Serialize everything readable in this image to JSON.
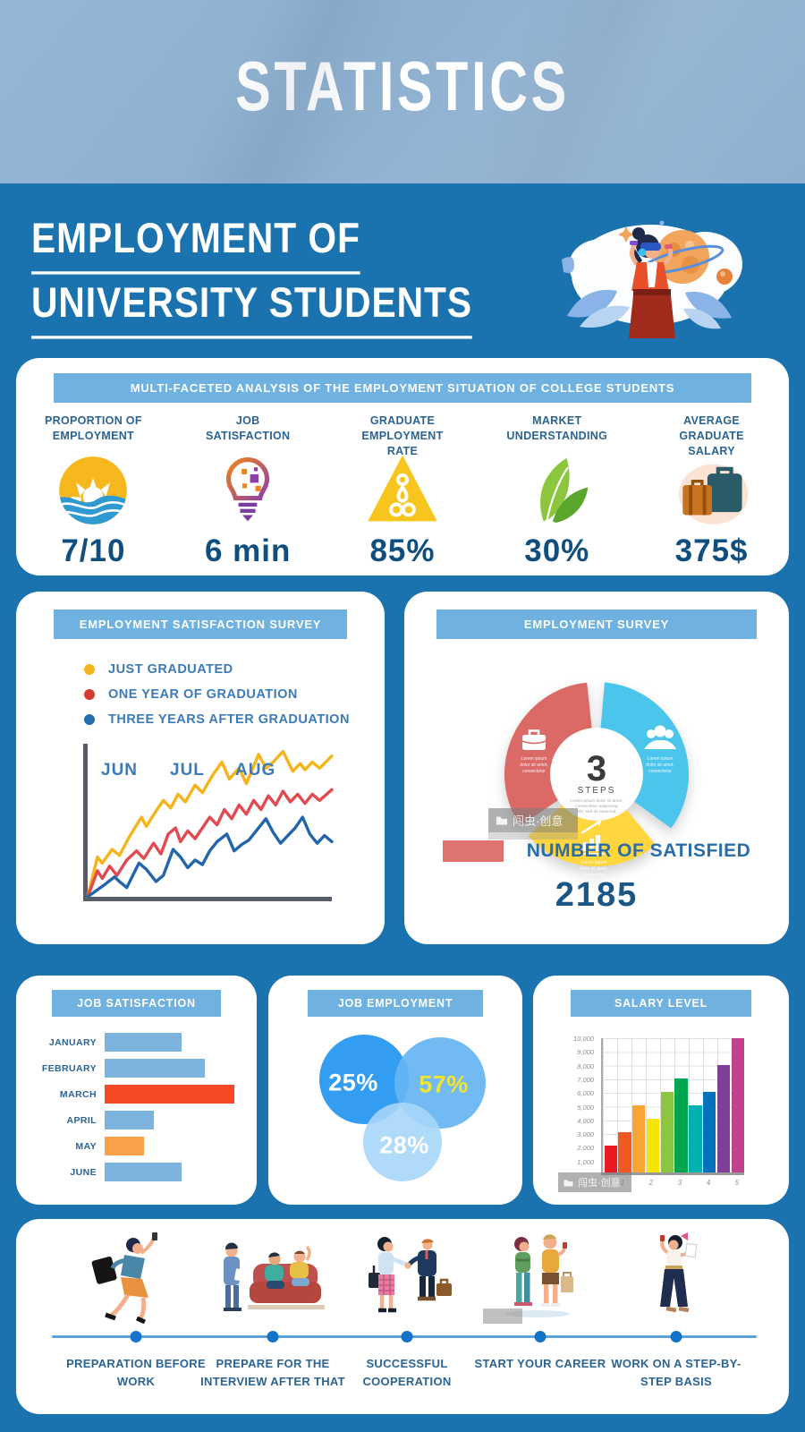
{
  "page": {
    "banner_title": "STATISTICS",
    "title_line1": "EMPLOYMENT OF",
    "title_line2": "UNIVERSITY STUDENTS"
  },
  "analysis": {
    "header": "MULTI-FACETED ANALYSIS OF THE EMPLOYMENT SITUATION OF COLLEGE STUDENTS",
    "stats": [
      {
        "label": "PROPORTION OF EMPLOYMENT",
        "value": "7/10",
        "icon": "sun-wave-icon"
      },
      {
        "label": "JOB SATISFACTION",
        "value": "6 min",
        "icon": "idea-head-icon"
      },
      {
        "label": "GRADUATE EMPLOYMENT RATE",
        "value": "85%",
        "icon": "pyramid-icon"
      },
      {
        "label": "MARKET UNDERSTANDING",
        "value": "30%",
        "icon": "leaf-icon"
      },
      {
        "label": "AVERAGE GRADUATE SALARY",
        "value": "375$",
        "icon": "suitcases-icon"
      }
    ]
  },
  "satisfaction_survey": {
    "header": "EMPLOYMENT SATISFACTION SURVEY",
    "legend": [
      {
        "label": "JUST GRADUATED",
        "color": "#f5b31c"
      },
      {
        "label": "ONE YEAR OF GRADUATION",
        "color": "#d63a35"
      },
      {
        "label": "THREE YEARS AFTER GRADUATION",
        "color": "#2470b3"
      }
    ]
  },
  "employment_survey": {
    "header": "EMPLOYMENT SURVEY",
    "center_number": "3",
    "center_label": "STEPS",
    "center_caption_lines": [
      "Lorem ipsum dolor sit amet,",
      "consectetur adipiscing",
      "elit, sed do eiusmod"
    ],
    "segment_caption_lines": [
      "Lorem ipsum",
      "dolor sit amet,",
      "consectetur"
    ],
    "legend_label": "NUMBER OF SATISFIED",
    "legend_color": "#dd7470",
    "value": "2185"
  },
  "job_satisfaction": {
    "header": "JOB SATISFACTION"
  },
  "job_employment": {
    "header": "JOB EMPLOYMENT"
  },
  "salary_level": {
    "header": "SALARY LEVEL"
  },
  "timeline": {
    "steps": [
      {
        "label": "PREPARATION BEFORE WORK",
        "illustration": "running-woman-illustration"
      },
      {
        "label": "PREPARE FOR THE INTERVIEW AFTER THAT",
        "illustration": "interview-couch-illustration"
      },
      {
        "label": "SUCCESSFUL COOPERATION",
        "illustration": "handshake-illustration"
      },
      {
        "label": "START YOUR CAREER",
        "illustration": "students-standing-illustration"
      },
      {
        "label": "WORK ON A STEP-BY-STEP BASIS",
        "illustration": "woman-checklist-illustration"
      }
    ]
  },
  "watermark": {
    "text": "闯虫·创意"
  },
  "chart_data": [
    {
      "type": "line",
      "title": "EMPLOYMENT SATISFACTION SURVEY",
      "x_labels": [
        "JUN",
        "JUL",
        "AUG"
      ],
      "ylim": [
        0,
        100
      ],
      "grid": false,
      "legend_position": "top-left",
      "series": [
        {
          "name": "JUST GRADUATED",
          "color": "#f5b31c",
          "points": [
            [
              0,
              0
            ],
            [
              4,
              26
            ],
            [
              6,
              22
            ],
            [
              10,
              31
            ],
            [
              13,
              27
            ],
            [
              17,
              39
            ],
            [
              22,
              52
            ],
            [
              24,
              46
            ],
            [
              28,
              56
            ],
            [
              31,
              63
            ],
            [
              34,
              58
            ],
            [
              37,
              67
            ],
            [
              40,
              62
            ],
            [
              44,
              73
            ],
            [
              47,
              68
            ],
            [
              51,
              79
            ],
            [
              55,
              88
            ],
            [
              58,
              77
            ],
            [
              62,
              84
            ],
            [
              65,
              74
            ],
            [
              70,
              93
            ],
            [
              73,
              84
            ],
            [
              76,
              88
            ],
            [
              80,
              95
            ],
            [
              84,
              82
            ],
            [
              87,
              87
            ],
            [
              89,
              83
            ],
            [
              92,
              88
            ],
            [
              95,
              84
            ],
            [
              100,
              92
            ]
          ]
        },
        {
          "name": "ONE YEAR OF GRADUATION",
          "color": "#e04a50",
          "points": [
            [
              0,
              0
            ],
            [
              4,
              17
            ],
            [
              6,
              12
            ],
            [
              9,
              20
            ],
            [
              12,
              14
            ],
            [
              16,
              24
            ],
            [
              20,
              30
            ],
            [
              23,
              25
            ],
            [
              27,
              35
            ],
            [
              30,
              28
            ],
            [
              33,
              41
            ],
            [
              36,
              45
            ],
            [
              38,
              36
            ],
            [
              41,
              43
            ],
            [
              44,
              38
            ],
            [
              47,
              45
            ],
            [
              50,
              52
            ],
            [
              53,
              47
            ],
            [
              56,
              57
            ],
            [
              59,
              51
            ],
            [
              62,
              60
            ],
            [
              65,
              54
            ],
            [
              68,
              63
            ],
            [
              71,
              57
            ],
            [
              74,
              66
            ],
            [
              77,
              60
            ],
            [
              80,
              69
            ],
            [
              83,
              62
            ],
            [
              86,
              67
            ],
            [
              89,
              61
            ],
            [
              92,
              67
            ],
            [
              95,
              63
            ],
            [
              100,
              70
            ]
          ]
        },
        {
          "name": "THREE YEARS AFTER GRADUATION",
          "color": "#2265ad",
          "points": [
            [
              0,
              0
            ],
            [
              7,
              8
            ],
            [
              11,
              13
            ],
            [
              13,
              10
            ],
            [
              16,
              6
            ],
            [
              21,
              22
            ],
            [
              24,
              18
            ],
            [
              28,
              10
            ],
            [
              31,
              14
            ],
            [
              35,
              31
            ],
            [
              38,
              26
            ],
            [
              41,
              19
            ],
            [
              44,
              24
            ],
            [
              47,
              21
            ],
            [
              50,
              30
            ],
            [
              53,
              36
            ],
            [
              57,
              41
            ],
            [
              60,
              30
            ],
            [
              63,
              34
            ],
            [
              66,
              37
            ],
            [
              70,
              45
            ],
            [
              73,
              51
            ],
            [
              76,
              42
            ],
            [
              79,
              35
            ],
            [
              82,
              40
            ],
            [
              85,
              45
            ],
            [
              88,
              52
            ],
            [
              91,
              41
            ],
            [
              94,
              35
            ],
            [
              97,
              40
            ],
            [
              100,
              36
            ]
          ]
        }
      ]
    },
    {
      "type": "pie",
      "subtype": "donut-3-steps",
      "title": "EMPLOYMENT SURVEY",
      "segments": [
        {
          "name": "step-briefcase",
          "value": 33.3,
          "color": "#db6a67",
          "icon": "briefcase-icon"
        },
        {
          "name": "step-people",
          "value": 33.3,
          "color": "#4cc5ec",
          "icon": "people-icon"
        },
        {
          "name": "step-growth-chart",
          "value": 33.3,
          "color": "#ffd63e",
          "icon": "growth-chart-icon"
        }
      ],
      "center_text": "3 STEPS",
      "annotation": {
        "label": "NUMBER OF SATISFIED",
        "value": 2185
      }
    },
    {
      "type": "bar",
      "orientation": "horizontal",
      "title": "JOB SATISFACTION",
      "categories": [
        "JANUARY",
        "FEBRUARY",
        "MARCH",
        "APRIL",
        "MAY",
        "JUNE"
      ],
      "values": [
        59,
        77,
        100,
        38,
        30,
        59
      ],
      "unit": "percent-of-max",
      "colors": [
        "#7db4de",
        "#7db4de",
        "#f44826",
        "#7db4de",
        "#f9a147",
        "#7db4de"
      ]
    },
    {
      "type": "venn",
      "title": "JOB EMPLOYMENT",
      "labels": [
        "25%",
        "57%",
        "28%"
      ],
      "values": [
        25,
        57,
        28
      ],
      "colors": [
        "#339df2",
        "#66b5f3",
        "#a7d6f9"
      ],
      "label_colors": [
        "#ffffff",
        "#f2e431",
        "#ffffff"
      ]
    },
    {
      "type": "bar",
      "orientation": "vertical",
      "title": "SALARY LEVEL",
      "x_labels": [
        "1",
        "2",
        "3",
        "4",
        "5"
      ],
      "values": [
        2000,
        3000,
        5000,
        4000,
        6000,
        7000,
        5000,
        6000,
        8000,
        10000
      ],
      "colors": [
        "#e8191f",
        "#f05a22",
        "#f9a433",
        "#f4e600",
        "#8cc63f",
        "#00a650",
        "#00b1b0",
        "#0071bc",
        "#7f3f98",
        "#c4418f"
      ],
      "y_ticks": [
        "10,000",
        "9,000",
        "8,000",
        "7,000",
        "6,000",
        "5,000",
        "4,000",
        "3,000",
        "2,000",
        "1,000"
      ],
      "ylim": [
        0,
        10000
      ],
      "grid": true
    }
  ]
}
